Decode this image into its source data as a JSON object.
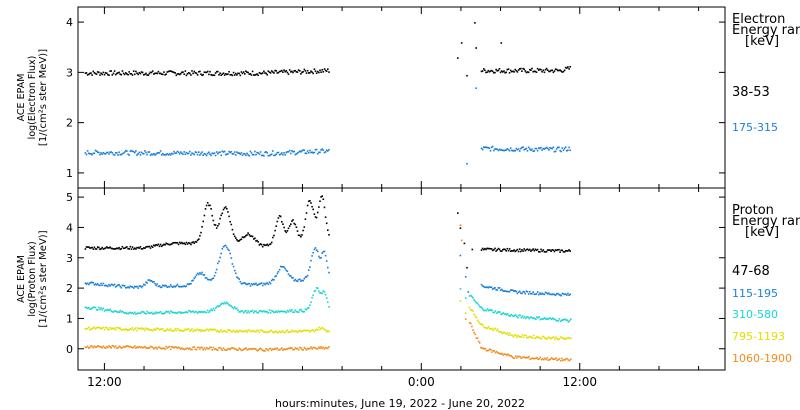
{
  "xlabel": "hours:minutes, June 19, 2022 - June 20, 2022",
  "x_ticks": [
    "12:00",
    "0:00",
    "12:00"
  ],
  "chart_data": [
    {
      "type": "scatter",
      "panel": "electron",
      "ylabel_lines": [
        "ACE EPAM",
        "log(Electron Flux)",
        "[1/(cm²s ster MeV)]"
      ],
      "ylim": [
        0.7,
        4.3
      ],
      "y_ticks": [
        1,
        2,
        3,
        4
      ],
      "xlim_hours": [
        10,
        59
      ],
      "data_gap_hours": [
        29,
        39
      ],
      "legend_title": [
        "Electron",
        "Energy range",
        "[keV]"
      ],
      "series": [
        {
          "name": "38-53",
          "color": "#000000",
          "base": [
            [
              10.5,
              3.0
            ],
            [
              24,
              3.0
            ],
            [
              29,
              3.05
            ]
          ],
          "recovery": [
            [
              40.5,
              3.05
            ],
            [
              46.5,
              3.05
            ],
            [
              47.3,
              3.1
            ]
          ],
          "scatter": [
            [
              38.7,
              3.3
            ],
            [
              39.0,
              3.6
            ],
            [
              39.4,
              2.95
            ],
            [
              40.0,
              4.0
            ],
            [
              40.1,
              3.5
            ],
            [
              42.0,
              3.6
            ]
          ]
        },
        {
          "name": "175-315",
          "color": "#1a7fd9",
          "base": [
            [
              10.5,
              1.42
            ],
            [
              24,
              1.4
            ],
            [
              29,
              1.45
            ]
          ],
          "recovery": [
            [
              40.5,
              1.5
            ],
            [
              46.5,
              1.48
            ],
            [
              47.3,
              1.5
            ]
          ],
          "scatter": [
            [
              39.4,
              1.2
            ],
            [
              40.1,
              2.7
            ]
          ]
        }
      ]
    },
    {
      "type": "scatter",
      "panel": "proton",
      "ylabel_lines": [
        "ACE EPAM",
        "log(Proton Flux)",
        "[1/(cm²s ster MeV)]"
      ],
      "ylim": [
        -0.7,
        5.3
      ],
      "y_ticks": [
        0,
        1,
        2,
        3,
        4,
        5
      ],
      "xlim_hours": [
        10,
        59
      ],
      "data_gap_hours": [
        29,
        39
      ],
      "legend_title": [
        "Proton",
        "Energy range",
        "[keV]"
      ],
      "series": [
        {
          "name": "47-68",
          "color": "#000000",
          "base": [
            [
              10.5,
              3.35
            ],
            [
              15,
              3.35
            ],
            [
              17,
              3.5
            ],
            [
              21,
              3.5
            ],
            [
              22,
              3.4
            ],
            [
              24,
              3.4
            ],
            [
              29,
              3.7
            ]
          ],
          "peaks": [
            [
              19.8,
              1.3,
              0.35
            ],
            [
              21.1,
              1.2,
              0.4
            ],
            [
              22.8,
              0.4,
              0.5
            ],
            [
              25.2,
              0.9,
              0.3
            ],
            [
              26.2,
              0.7,
              0.3
            ],
            [
              27.5,
              1.3,
              0.3
            ],
            [
              28.4,
              1.4,
              0.25
            ]
          ],
          "recovery": [
            [
              40.5,
              3.3
            ],
            [
              46.5,
              3.25
            ],
            [
              47.3,
              3.25
            ]
          ],
          "scatter": [
            [
              38.7,
              4.5
            ],
            [
              38.9,
              4.0
            ],
            [
              39.2,
              3.5
            ],
            [
              39.4,
              2.7
            ],
            [
              39.8,
              3.3
            ]
          ]
        },
        {
          "name": "115-195",
          "color": "#1a7fd9",
          "base": [
            [
              10.5,
              2.2
            ],
            [
              14,
              2.05
            ],
            [
              17,
              2.1
            ],
            [
              24,
              2.15
            ],
            [
              29,
              2.4
            ]
          ],
          "peaks": [
            [
              15.4,
              0.2,
              0.3
            ],
            [
              19.2,
              0.4,
              0.4
            ],
            [
              21.1,
              1.3,
              0.5
            ],
            [
              25.4,
              0.5,
              0.4
            ],
            [
              27.9,
              1.0,
              0.3
            ],
            [
              28.6,
              0.8,
              0.2
            ]
          ],
          "recovery": [
            [
              40.5,
              2.1
            ],
            [
              43,
              1.9
            ],
            [
              47.3,
              1.8
            ]
          ],
          "scatter": [
            [
              38.9,
              3.1
            ],
            [
              39.3,
              2.4
            ],
            [
              39.5,
              1.9
            ]
          ]
        },
        {
          "name": "310-580",
          "color": "#19d4d4",
          "base": [
            [
              10.5,
              1.4
            ],
            [
              14,
              1.2
            ],
            [
              20,
              1.25
            ],
            [
              24,
              1.25
            ],
            [
              29,
              1.3
            ]
          ],
          "peaks": [
            [
              21.1,
              0.3,
              0.5
            ],
            [
              28.0,
              0.7,
              0.3
            ],
            [
              28.6,
              0.5,
              0.2
            ]
          ],
          "recovery": [
            [
              39.6,
              1.8
            ],
            [
              40.5,
              1.35
            ],
            [
              43,
              1.1
            ],
            [
              47.3,
              0.95
            ]
          ],
          "scatter": [
            [
              38.9,
              2.0
            ],
            [
              39.3,
              1.7
            ]
          ]
        },
        {
          "name": "795-1193",
          "color": "#e0e000",
          "base": [
            [
              10.5,
              0.7
            ],
            [
              24,
              0.6
            ],
            [
              29,
              0.6
            ]
          ],
          "peaks": [
            [
              28.3,
              0.1,
              0.3
            ]
          ],
          "recovery": [
            [
              39.6,
              1.4
            ],
            [
              40.5,
              0.8
            ],
            [
              43,
              0.45
            ],
            [
              47.3,
              0.35
            ]
          ],
          "scatter": [
            [
              38.9,
              1.6
            ],
            [
              39.3,
              1.2
            ]
          ]
        },
        {
          "name": "1060-1900",
          "color": "#f08c1e",
          "base": [
            [
              10.5,
              0.1
            ],
            [
              24,
              0.0
            ],
            [
              29,
              0.05
            ]
          ],
          "peaks": [],
          "recovery": [
            [
              39.6,
              0.9
            ],
            [
              40.5,
              0.05
            ],
            [
              43,
              -0.25
            ],
            [
              47.3,
              -0.35
            ]
          ],
          "scatter": [
            [
              38.9,
              4.1
            ],
            [
              39.0,
              3.6
            ],
            [
              39.3,
              1.0
            ]
          ]
        }
      ]
    }
  ]
}
